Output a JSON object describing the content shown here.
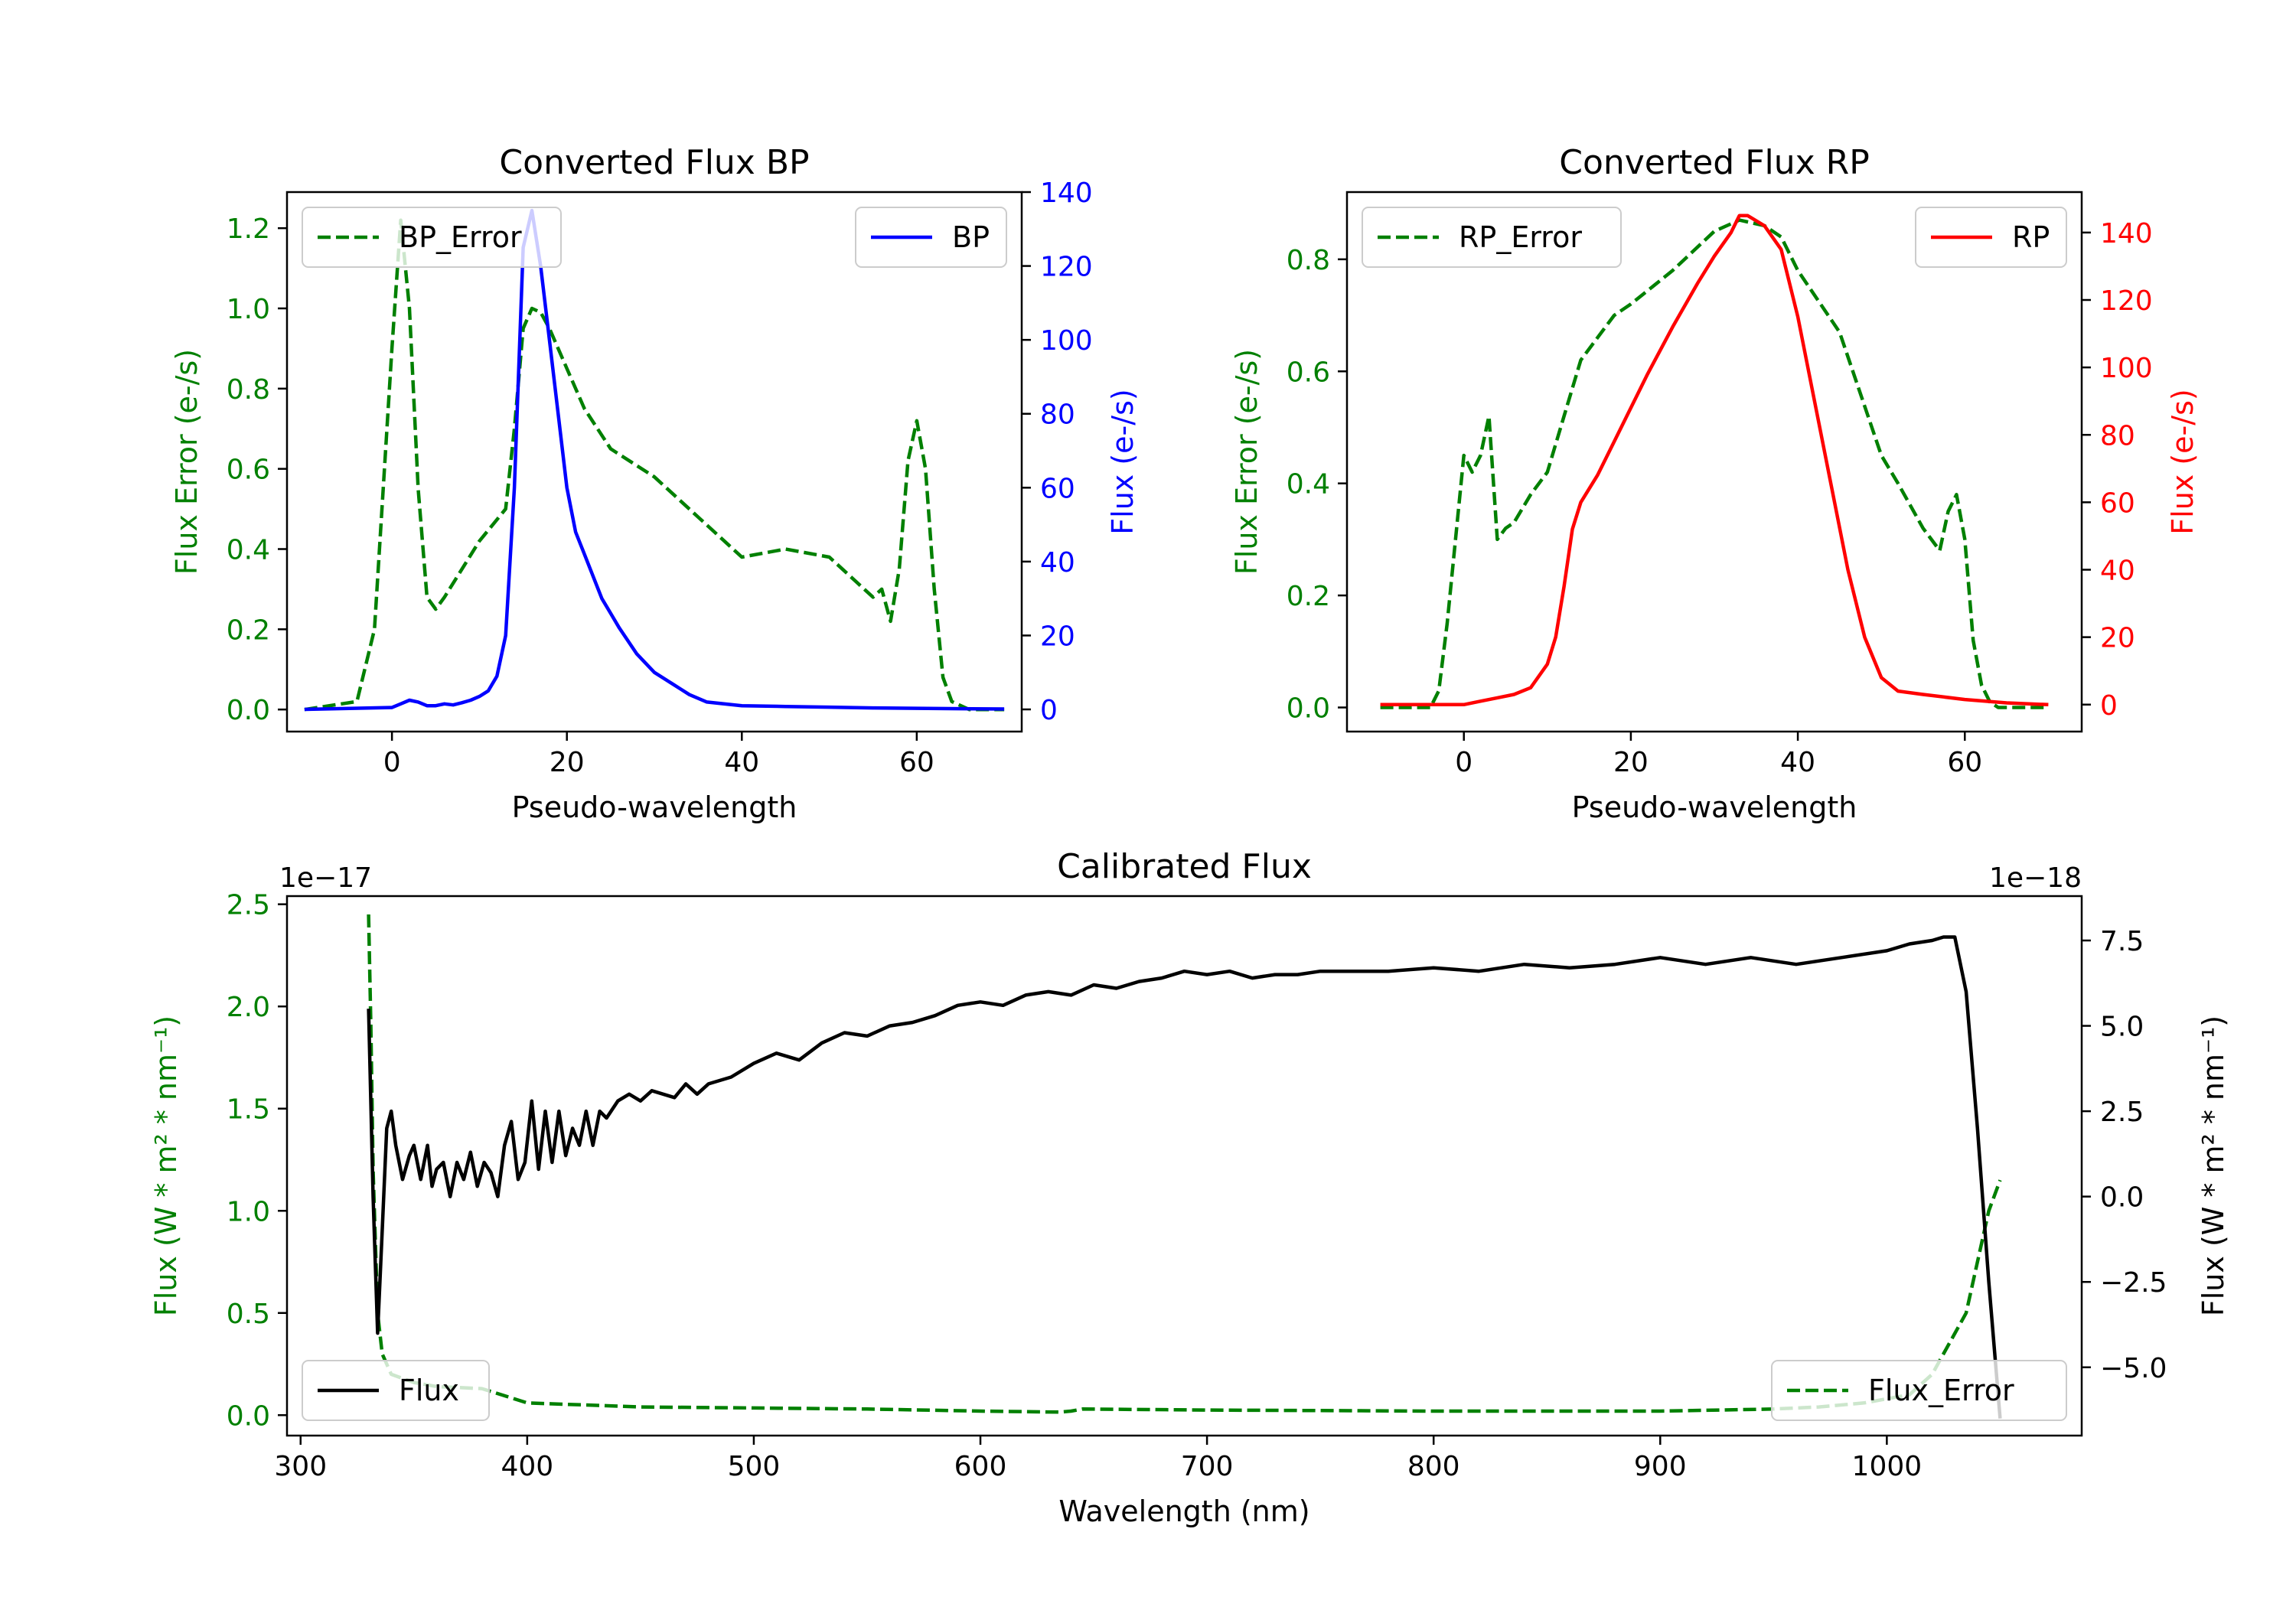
{
  "chart_data": [
    {
      "type": "line",
      "title": "Converted Flux BP",
      "xlabel": "Pseudo-wavelength",
      "ylabel_left": "Flux Error (e-/s)",
      "ylabel_right": "Flux (e-/s)",
      "xlim": [
        -12,
        72
      ],
      "ylim_left": [
        -0.055,
        1.29
      ],
      "ylim_right": [
        -6,
        140
      ],
      "xticks": [
        0,
        20,
        40,
        60
      ],
      "yticks_left": [
        0.0,
        0.2,
        0.4,
        0.6,
        0.8,
        1.0,
        1.2
      ],
      "yticks_right": [
        0,
        20,
        40,
        60,
        80,
        100,
        120,
        140
      ],
      "series": [
        {
          "name": "BP_Error",
          "axis": "left",
          "color": "#008000",
          "dash": true,
          "x": [
            -10,
            -4,
            -2,
            0,
            1,
            2,
            3,
            4,
            5,
            6,
            8,
            10,
            13,
            14,
            15,
            16,
            17,
            18,
            20,
            22,
            25,
            30,
            35,
            40,
            45,
            50,
            55,
            56,
            57,
            58,
            59,
            60,
            61,
            62,
            63,
            64,
            66,
            68,
            70
          ],
          "values": [
            0.0,
            0.02,
            0.2,
            0.9,
            1.22,
            1.0,
            0.55,
            0.28,
            0.25,
            0.28,
            0.35,
            0.42,
            0.5,
            0.7,
            0.95,
            1.0,
            0.99,
            0.95,
            0.85,
            0.75,
            0.65,
            0.58,
            0.48,
            0.38,
            0.4,
            0.38,
            0.28,
            0.3,
            0.22,
            0.35,
            0.62,
            0.72,
            0.6,
            0.3,
            0.08,
            0.02,
            0.0,
            0.0,
            0.0
          ]
        },
        {
          "name": "BP",
          "axis": "right",
          "color": "#0000ff",
          "dash": false,
          "x": [
            -10,
            0,
            1,
            2,
            3,
            4,
            5,
            6,
            7,
            8,
            9,
            10,
            11,
            12,
            13,
            14,
            15,
            16,
            17,
            18,
            19,
            20,
            21,
            22,
            23,
            24,
            25,
            26,
            28,
            30,
            32,
            34,
            36,
            40,
            45,
            50,
            55,
            60,
            65,
            70
          ],
          "values": [
            0,
            0.5,
            1.5,
            2.5,
            2.0,
            1.0,
            1.0,
            1.5,
            1.2,
            1.8,
            2.5,
            3.5,
            5,
            9,
            20,
            60,
            125,
            135,
            120,
            100,
            80,
            60,
            48,
            42,
            36,
            30,
            26,
            22,
            15,
            10,
            7,
            4,
            2,
            1,
            0.8,
            0.6,
            0.4,
            0.3,
            0.2,
            0.1
          ]
        }
      ],
      "legend": [
        {
          "label": "BP_Error",
          "position": "upper-left"
        },
        {
          "label": "BP",
          "position": "upper-right"
        }
      ]
    },
    {
      "type": "line",
      "title": "Converted Flux RP",
      "xlabel": "Pseudo-wavelength",
      "ylabel_left": "Flux Error (e-/s)",
      "ylabel_right": "Flux (e-/s)",
      "xlim": [
        -14,
        74
      ],
      "ylim_left": [
        -0.043,
        0.92
      ],
      "ylim_right": [
        -8,
        152
      ],
      "xticks": [
        0,
        20,
        40,
        60
      ],
      "yticks_left": [
        0.0,
        0.2,
        0.4,
        0.6,
        0.8
      ],
      "yticks_right": [
        0,
        20,
        40,
        60,
        80,
        100,
        120,
        140
      ],
      "series": [
        {
          "name": "RP_Error",
          "axis": "left",
          "color": "#008000",
          "dash": true,
          "x": [
            -10,
            -4,
            -3,
            -2,
            -1,
            0,
            1,
            2,
            3,
            4,
            5,
            6,
            8,
            10,
            12,
            14,
            16,
            18,
            20,
            25,
            30,
            33,
            36,
            38,
            40,
            45,
            50,
            52,
            55,
            56,
            57,
            58,
            59,
            60,
            61,
            62,
            63,
            64,
            66,
            68,
            70
          ],
          "values": [
            0.0,
            0.0,
            0.03,
            0.15,
            0.3,
            0.45,
            0.42,
            0.45,
            0.52,
            0.3,
            0.32,
            0.33,
            0.38,
            0.42,
            0.52,
            0.62,
            0.66,
            0.7,
            0.72,
            0.78,
            0.85,
            0.87,
            0.86,
            0.84,
            0.78,
            0.67,
            0.45,
            0.4,
            0.32,
            0.3,
            0.28,
            0.35,
            0.38,
            0.3,
            0.12,
            0.04,
            0.01,
            0.0,
            0.0,
            0.0,
            0.0
          ]
        },
        {
          "name": "RP",
          "axis": "right",
          "color": "#ff0000",
          "dash": false,
          "x": [
            -10,
            0,
            2,
            4,
            6,
            8,
            10,
            11,
            12,
            13,
            14,
            16,
            18,
            20,
            22,
            25,
            28,
            30,
            32,
            33,
            34,
            36,
            38,
            40,
            42,
            44,
            46,
            48,
            50,
            52,
            55,
            60,
            65,
            70
          ],
          "values": [
            0,
            0,
            1,
            2,
            3,
            5,
            12,
            20,
            35,
            52,
            60,
            68,
            78,
            88,
            98,
            112,
            125,
            133,
            140,
            145,
            145,
            142,
            135,
            115,
            90,
            65,
            40,
            20,
            8,
            4,
            3,
            1.5,
            0.5,
            0
          ],
          "color_name": "red"
        }
      ],
      "legend": [
        {
          "label": "RP_Error",
          "position": "upper-left"
        },
        {
          "label": "RP",
          "position": "upper-right"
        }
      ]
    },
    {
      "type": "line",
      "title": "Calibrated Flux",
      "xlabel": "Wavelength (nm)",
      "ylabel_left": "Flux (W * m² * nm⁻¹)",
      "ylabel_right": "Flux (W * m² * nm⁻¹)",
      "offset_left": "1e−17",
      "offset_right": "1e−18",
      "xlim": [
        294,
        1086
      ],
      "ylim_left": [
        -0.1,
        2.54
      ],
      "ylim_right": [
        -7.0,
        8.8
      ],
      "xticks": [
        300,
        400,
        500,
        600,
        700,
        800,
        900,
        1000
      ],
      "yticks_left": [
        0.0,
        0.5,
        1.0,
        1.5,
        2.0,
        2.5
      ],
      "yticks_right": [
        -5.0,
        -2.5,
        0.0,
        2.5,
        5.0,
        7.5
      ],
      "series": [
        {
          "name": "Flux_Error",
          "axis": "left",
          "color": "#008000",
          "dash": true,
          "x": [
            330,
            331,
            332,
            334,
            336,
            340,
            350,
            360,
            380,
            400,
            450,
            500,
            550,
            600,
            635,
            640,
            645,
            700,
            800,
            900,
            950,
            970,
            990,
            1010,
            1020,
            1030,
            1035,
            1040,
            1045,
            1050
          ],
          "values": [
            2.45,
            1.9,
            1.2,
            0.5,
            0.3,
            0.2,
            0.16,
            0.14,
            0.13,
            0.06,
            0.04,
            0.035,
            0.03,
            0.02,
            0.015,
            0.02,
            0.03,
            0.025,
            0.02,
            0.02,
            0.03,
            0.04,
            0.06,
            0.1,
            0.2,
            0.4,
            0.5,
            0.75,
            1.0,
            1.15
          ]
        },
        {
          "name": "Flux",
          "axis": "right",
          "color": "#000000",
          "dash": false,
          "x": [
            330,
            332,
            334,
            336,
            338,
            340,
            342,
            345,
            348,
            350,
            353,
            356,
            358,
            360,
            363,
            366,
            369,
            372,
            375,
            378,
            381,
            384,
            387,
            390,
            393,
            396,
            399,
            402,
            405,
            408,
            411,
            414,
            417,
            420,
            423,
            426,
            429,
            432,
            435,
            440,
            445,
            450,
            455,
            460,
            465,
            470,
            475,
            480,
            490,
            500,
            510,
            520,
            530,
            540,
            550,
            560,
            570,
            580,
            590,
            600,
            610,
            620,
            630,
            640,
            650,
            660,
            670,
            680,
            690,
            700,
            710,
            720,
            730,
            740,
            750,
            760,
            780,
            800,
            820,
            840,
            860,
            880,
            900,
            920,
            940,
            960,
            980,
            1000,
            1010,
            1020,
            1025,
            1030,
            1035,
            1040,
            1045,
            1050
          ],
          "values": [
            5.5,
            0.0,
            -4.0,
            -1.0,
            2.0,
            2.5,
            1.5,
            0.5,
            1.2,
            1.5,
            0.5,
            1.5,
            0.3,
            0.8,
            1.0,
            0.0,
            1.0,
            0.5,
            1.3,
            0.3,
            1.0,
            0.7,
            0.0,
            1.5,
            2.2,
            0.5,
            1.0,
            2.8,
            0.8,
            2.5,
            1.0,
            2.5,
            1.2,
            2.0,
            1.5,
            2.5,
            1.5,
            2.5,
            2.3,
            2.8,
            3.0,
            2.8,
            3.1,
            3.0,
            2.9,
            3.3,
            3.0,
            3.3,
            3.5,
            3.9,
            4.2,
            4.0,
            4.5,
            4.8,
            4.7,
            5.0,
            5.1,
            5.3,
            5.6,
            5.7,
            5.6,
            5.9,
            6.0,
            5.9,
            6.2,
            6.1,
            6.3,
            6.4,
            6.6,
            6.5,
            6.6,
            6.4,
            6.5,
            6.5,
            6.6,
            6.6,
            6.6,
            6.7,
            6.6,
            6.8,
            6.7,
            6.8,
            7.0,
            6.8,
            7.0,
            6.8,
            7.0,
            7.2,
            7.4,
            7.5,
            7.6,
            7.6,
            6.0,
            2.0,
            -2.5,
            -6.5
          ]
        }
      ],
      "legend": [
        {
          "label": "Flux",
          "position": "lower-left"
        },
        {
          "label": "Flux_Error",
          "position": "lower-right"
        }
      ]
    }
  ]
}
